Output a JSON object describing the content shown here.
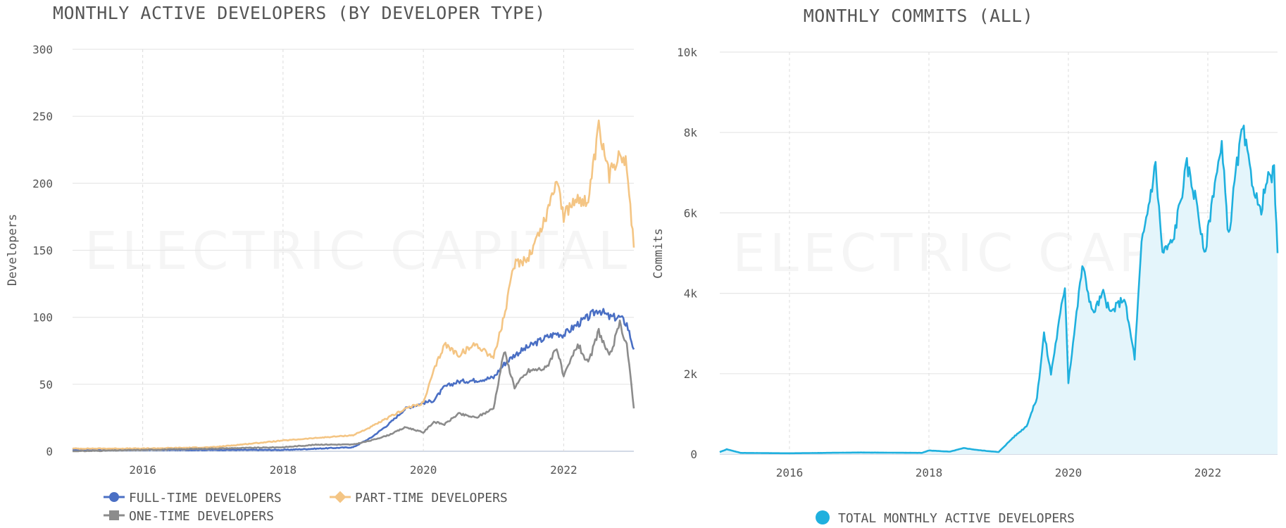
{
  "chart_data": [
    {
      "type": "line",
      "title": "MONTHLY ACTIVE DEVELOPERS (BY DEVELOPER TYPE)",
      "xlabel": "",
      "ylabel": "Developers",
      "xlim": [
        2015.0,
        2023.0
      ],
      "ylim": [
        0,
        300
      ],
      "xticks": [
        "2016",
        "2018",
        "2020",
        "2022"
      ],
      "xtick_values": [
        2016,
        2018,
        2020,
        2022
      ],
      "yticks": [
        "0",
        "50",
        "100",
        "150",
        "200",
        "250",
        "300"
      ],
      "ytick_values": [
        0,
        50,
        100,
        150,
        200,
        250,
        300
      ],
      "grid": "horizontal solid, vertical dashed",
      "legend_position": "bottom-left",
      "watermark": "ELECTRIC CAPITAL",
      "x": [
        2015.0,
        2016.0,
        2017.0,
        2018.0,
        2018.5,
        2019.0,
        2019.25,
        2019.5,
        2019.75,
        2020.0,
        2020.15,
        2020.3,
        2020.5,
        2020.75,
        2021.0,
        2021.15,
        2021.3,
        2021.5,
        2021.75,
        2021.9,
        2022.0,
        2022.2,
        2022.35,
        2022.5,
        2022.65,
        2022.8,
        2022.9,
        2023.0
      ],
      "series": [
        {
          "name": "FULL-TIME DEVELOPERS",
          "color": "#4a6fc4",
          "values": [
            1,
            1,
            1,
            1,
            2,
            3,
            10,
            20,
            32,
            36,
            38,
            48,
            52,
            53,
            55,
            65,
            72,
            78,
            85,
            88,
            87,
            95,
            100,
            106,
            100,
            100,
            95,
            76
          ]
        },
        {
          "name": "PART-TIME DEVELOPERS",
          "color": "#f4c584",
          "values": [
            2,
            2,
            3,
            8,
            10,
            12,
            18,
            25,
            32,
            36,
            60,
            80,
            72,
            80,
            70,
            100,
            140,
            145,
            175,
            205,
            175,
            190,
            185,
            240,
            205,
            225,
            215,
            152
          ]
        },
        {
          "name": "ONE-TIME DEVELOPERS",
          "color": "#8c8c8c",
          "values": [
            0,
            1,
            2,
            3,
            5,
            5,
            8,
            12,
            18,
            14,
            22,
            20,
            28,
            25,
            32,
            75,
            48,
            60,
            62,
            78,
            55,
            80,
            65,
            90,
            70,
            95,
            80,
            32
          ]
        }
      ]
    },
    {
      "type": "area",
      "title": "MONTHLY COMMITS (ALL)",
      "xlabel": "",
      "ylabel": "Commits",
      "xlim": [
        2015.0,
        2023.0
      ],
      "ylim": [
        0,
        10000
      ],
      "xticks": [
        "2016",
        "2018",
        "2020",
        "2022"
      ],
      "xtick_values": [
        2016,
        2018,
        2020,
        2022
      ],
      "yticks": [
        "0",
        "2k",
        "4k",
        "6k",
        "8k",
        "10k"
      ],
      "ytick_values": [
        0,
        2000,
        4000,
        6000,
        8000,
        10000
      ],
      "grid": "horizontal solid, vertical dashed",
      "legend_position": "bottom-center",
      "watermark": "ELECTRIC CAPITAL",
      "x": [
        2015.0,
        2015.1,
        2015.3,
        2016.0,
        2017.0,
        2017.9,
        2018.0,
        2018.3,
        2018.5,
        2018.7,
        2019.0,
        2019.2,
        2019.4,
        2019.55,
        2019.65,
        2019.75,
        2019.95,
        2020.0,
        2020.2,
        2020.35,
        2020.5,
        2020.6,
        2020.8,
        2020.95,
        2021.05,
        2021.25,
        2021.35,
        2021.5,
        2021.7,
        2021.85,
        2021.95,
        2022.1,
        2022.2,
        2022.3,
        2022.4,
        2022.5,
        2022.6,
        2022.75,
        2022.85,
        2022.95,
        2023.0
      ],
      "series": [
        {
          "name": "TOTAL MONTHLY ACTIVE DEVELOPERS",
          "color": "#1fb0de",
          "values": [
            50,
            120,
            30,
            20,
            40,
            30,
            90,
            60,
            150,
            100,
            50,
            400,
            700,
            1400,
            3000,
            2000,
            4200,
            1800,
            4700,
            3500,
            4000,
            3500,
            3900,
            2400,
            5200,
            7200,
            5000,
            5300,
            7200,
            6200,
            4900,
            6800,
            7600,
            5400,
            7000,
            8100,
            7100,
            6000,
            6800,
            7000,
            5000
          ]
        }
      ]
    }
  ]
}
